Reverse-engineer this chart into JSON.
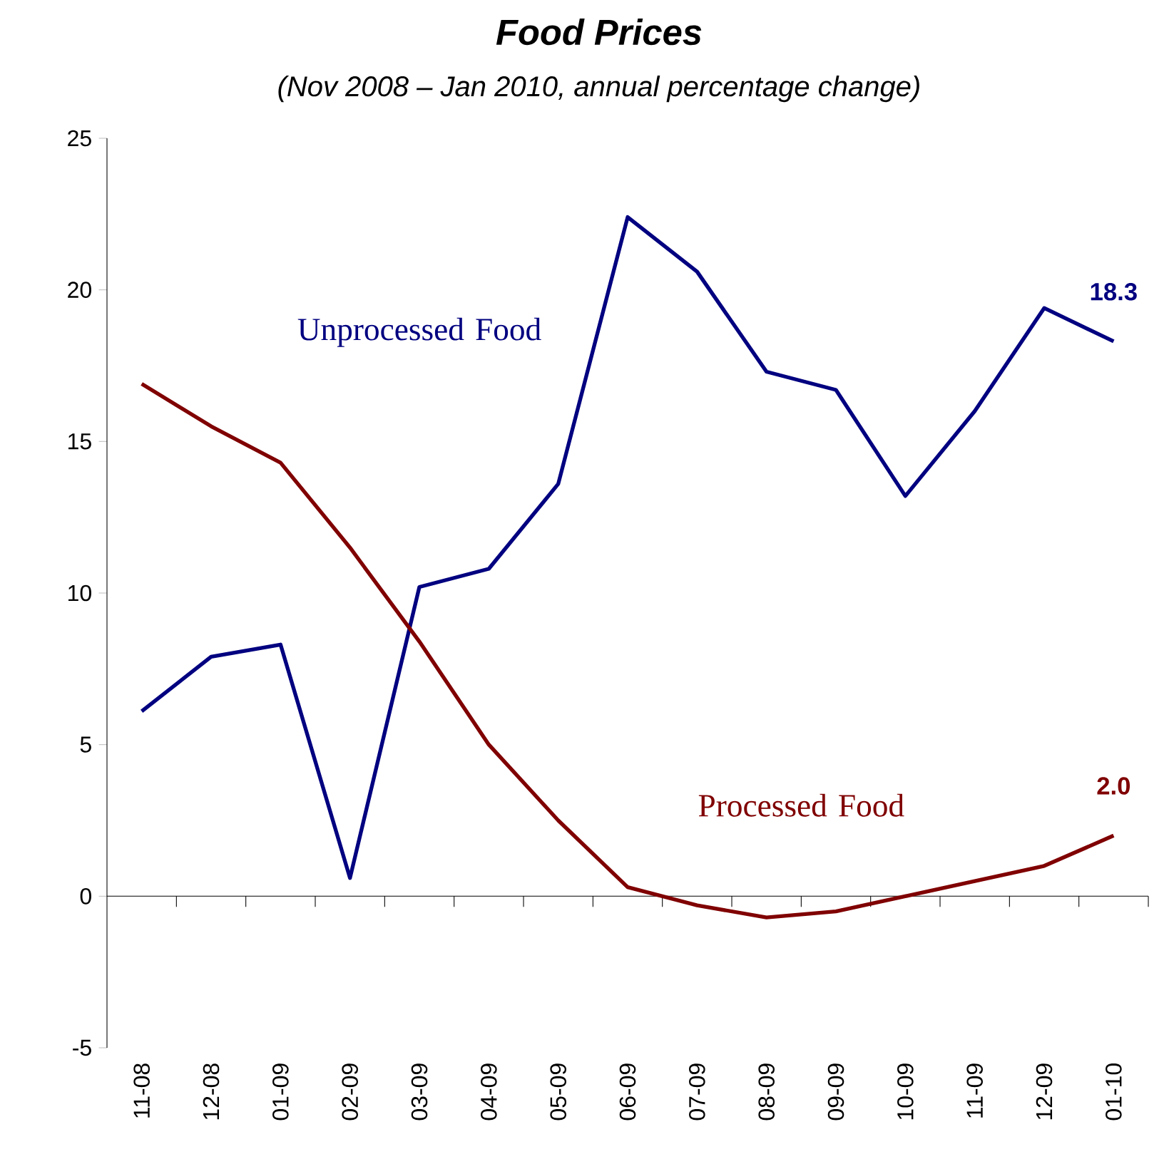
{
  "chart_data": {
    "type": "line",
    "title": "Food Prices",
    "subtitle": "(Nov 2008 – Jan 2010, annual percentage change)",
    "categories": [
      "11-08",
      "12-08",
      "01-09",
      "02-09",
      "03-09",
      "04-09",
      "05-09",
      "06-09",
      "07-09",
      "08-09",
      "09-09",
      "10-09",
      "11-09",
      "12-09",
      "01-10"
    ],
    "series": [
      {
        "name": "Unprocessed Food",
        "color": "#000080",
        "values": [
          6.1,
          7.9,
          8.3,
          0.6,
          10.2,
          10.8,
          13.6,
          22.4,
          20.6,
          17.3,
          16.7,
          13.2,
          16.0,
          19.4,
          18.3
        ],
        "value_labels": [
          null,
          null,
          null,
          null,
          null,
          null,
          null,
          null,
          null,
          null,
          null,
          null,
          null,
          null,
          "18.3"
        ]
      },
      {
        "name": "Processed Food",
        "color": "#800000",
        "values": [
          16.9,
          15.5,
          14.3,
          11.5,
          8.4,
          5.0,
          2.5,
          0.3,
          -0.3,
          -0.7,
          -0.5,
          0.0,
          0.5,
          1.0,
          2.0
        ],
        "value_labels": [
          null,
          null,
          null,
          null,
          null,
          null,
          null,
          null,
          null,
          null,
          null,
          null,
          null,
          null,
          "2.0"
        ]
      }
    ],
    "ylim": [
      -5,
      25
    ],
    "yticks": [
      -5,
      0,
      5,
      10,
      15,
      20,
      25
    ]
  }
}
